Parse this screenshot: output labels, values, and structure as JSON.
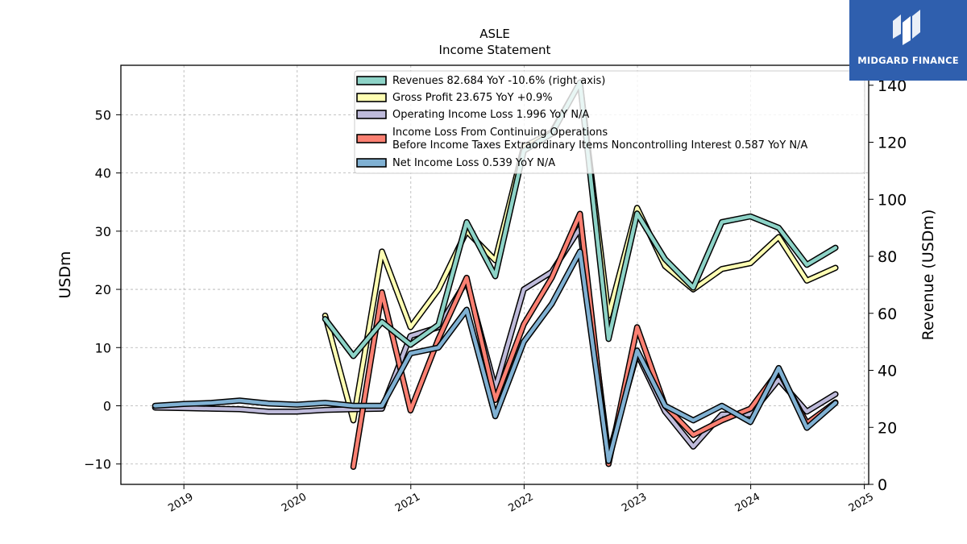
{
  "brand": {
    "name": "MIDGARD FINANCE"
  },
  "chart_data": {
    "type": "line",
    "title": "ASLE",
    "subtitle": "Income Statement",
    "ylabel": "USDm",
    "y2label": "Revenue (USDm)",
    "ylim": [
      -13.5,
      58.5
    ],
    "y2lim": [
      0,
      147
    ],
    "yticks": [
      -10,
      0,
      10,
      20,
      30,
      40,
      50
    ],
    "y2ticks": [
      0,
      20,
      40,
      60,
      80,
      100,
      120,
      140
    ],
    "xlim": [
      "2018-06-12",
      "2025-01-15"
    ],
    "xticks": [
      "2019",
      "2020",
      "2021",
      "2022",
      "2023",
      "2024",
      "2025"
    ],
    "grid": true,
    "legend_position": "top-center",
    "series": [
      {
        "name": "Revenues  82.684 YoY -10.6% (right axis)",
        "axis": "right",
        "color": "#8dd3c7",
        "points": [
          [
            "2020-03-31",
            58
          ],
          [
            "2020-06-30",
            45
          ],
          [
            "2020-09-30",
            57
          ],
          [
            "2020-12-31",
            49
          ],
          [
            "2021-03-31",
            56
          ],
          [
            "2021-06-30",
            92
          ],
          [
            "2021-09-30",
            73
          ],
          [
            "2021-12-31",
            117
          ],
          [
            "2022-03-31",
            123
          ],
          [
            "2022-06-30",
            141
          ],
          [
            "2022-09-30",
            51
          ],
          [
            "2022-12-31",
            95
          ],
          [
            "2023-03-31",
            79
          ],
          [
            "2023-06-30",
            69
          ],
          [
            "2023-09-30",
            92
          ],
          [
            "2023-12-31",
            94
          ],
          [
            "2024-03-31",
            90
          ],
          [
            "2024-06-30",
            77
          ],
          [
            "2024-09-30",
            83
          ]
        ]
      },
      {
        "name": "Gross Profit  23.675 YoY +0.9%",
        "axis": "left",
        "color": "#ffffb3",
        "points": [
          [
            "2020-03-31",
            15.5
          ],
          [
            "2020-06-30",
            -2.5
          ],
          [
            "2020-09-30",
            26.5
          ],
          [
            "2020-12-31",
            13.5
          ],
          [
            "2021-03-31",
            20
          ],
          [
            "2021-06-30",
            30
          ],
          [
            "2021-09-30",
            25
          ],
          [
            "2021-12-31",
            44.5
          ],
          [
            "2022-03-31",
            47
          ],
          [
            "2022-06-30",
            55.5
          ],
          [
            "2022-09-30",
            15.5
          ],
          [
            "2022-12-31",
            34
          ],
          [
            "2023-03-31",
            24
          ],
          [
            "2023-06-30",
            20
          ],
          [
            "2023-09-30",
            23.5
          ],
          [
            "2023-12-31",
            24.5
          ],
          [
            "2024-03-31",
            29
          ],
          [
            "2024-06-30",
            21.5
          ],
          [
            "2024-09-30",
            23.7
          ]
        ]
      },
      {
        "name": "Operating Income Loss  1.996 YoY N/A",
        "axis": "left",
        "color": "#bebada",
        "points": [
          [
            "2018-09-30",
            -0.3
          ],
          [
            "2018-12-31",
            -0.4
          ],
          [
            "2019-03-31",
            -0.5
          ],
          [
            "2019-06-30",
            -0.6
          ],
          [
            "2019-09-30",
            -1
          ],
          [
            "2019-12-31",
            -1
          ],
          [
            "2020-03-31",
            -0.7
          ],
          [
            "2020-06-30",
            -0.6
          ],
          [
            "2020-09-30",
            -0.5
          ],
          [
            "2020-12-31",
            12
          ],
          [
            "2021-03-31",
            13.5
          ],
          [
            "2021-06-30",
            21.5
          ],
          [
            "2021-09-30",
            3
          ],
          [
            "2021-12-31",
            20
          ],
          [
            "2022-03-31",
            23
          ],
          [
            "2022-06-30",
            30.5
          ],
          [
            "2022-09-30",
            -8.5
          ],
          [
            "2022-12-31",
            9
          ],
          [
            "2023-03-31",
            -1
          ],
          [
            "2023-06-30",
            -7
          ],
          [
            "2023-09-30",
            -1.5
          ],
          [
            "2023-12-31",
            -1.5
          ],
          [
            "2024-03-31",
            4.5
          ],
          [
            "2024-06-30",
            -1
          ],
          [
            "2024-09-30",
            2
          ]
        ]
      },
      {
        "name": "Income Loss From Continuing Operations Before Income Taxes Extraordinary Items Noncontrolling Interest  0.587 YoY N/A",
        "name_lines": [
          "Income Loss From Continuing Operations",
          "Before Income Taxes Extraordinary Items Noncontrolling Interest  0.587 YoY N/A"
        ],
        "axis": "left",
        "color": "#fb8072",
        "points": [
          [
            "2020-06-30",
            -10.5
          ],
          [
            "2020-09-30",
            19.5
          ],
          [
            "2020-12-31",
            -0.8
          ],
          [
            "2021-03-31",
            11.5
          ],
          [
            "2021-06-30",
            22
          ],
          [
            "2021-09-30",
            1
          ],
          [
            "2021-12-31",
            14
          ],
          [
            "2022-03-31",
            22
          ],
          [
            "2022-06-30",
            33
          ],
          [
            "2022-09-30",
            -10
          ],
          [
            "2022-12-31",
            13.5
          ],
          [
            "2023-03-31",
            0
          ],
          [
            "2023-06-30",
            -5
          ],
          [
            "2023-09-30",
            -2.5
          ],
          [
            "2023-12-31",
            -0.5
          ],
          [
            "2024-03-31",
            6
          ],
          [
            "2024-06-30",
            -3
          ],
          [
            "2024-09-30",
            0.6
          ]
        ]
      },
      {
        "name": "Net Income Loss  0.539 YoY N/A",
        "axis": "left",
        "color": "#80b1d3",
        "points": [
          [
            "2018-09-30",
            0
          ],
          [
            "2018-12-31",
            0.3
          ],
          [
            "2019-03-31",
            0.5
          ],
          [
            "2019-06-30",
            0.9
          ],
          [
            "2019-09-30",
            0.4
          ],
          [
            "2019-12-31",
            0.2
          ],
          [
            "2020-03-31",
            0.5
          ],
          [
            "2020-06-30",
            0
          ],
          [
            "2020-09-30",
            0
          ],
          [
            "2020-12-31",
            9
          ],
          [
            "2021-03-31",
            10
          ],
          [
            "2021-06-30",
            16.5
          ],
          [
            "2021-09-30",
            -1.8
          ],
          [
            "2021-12-31",
            11
          ],
          [
            "2022-03-31",
            17.5
          ],
          [
            "2022-06-30",
            26.5
          ],
          [
            "2022-09-30",
            -9.5
          ],
          [
            "2022-12-31",
            9.5
          ],
          [
            "2023-03-31",
            0
          ],
          [
            "2023-06-30",
            -2.5
          ],
          [
            "2023-09-30",
            0
          ],
          [
            "2023-12-31",
            -2.8
          ],
          [
            "2024-03-31",
            6.5
          ],
          [
            "2024-06-30",
            -3.8
          ],
          [
            "2024-09-30",
            0.5
          ]
        ]
      }
    ]
  }
}
